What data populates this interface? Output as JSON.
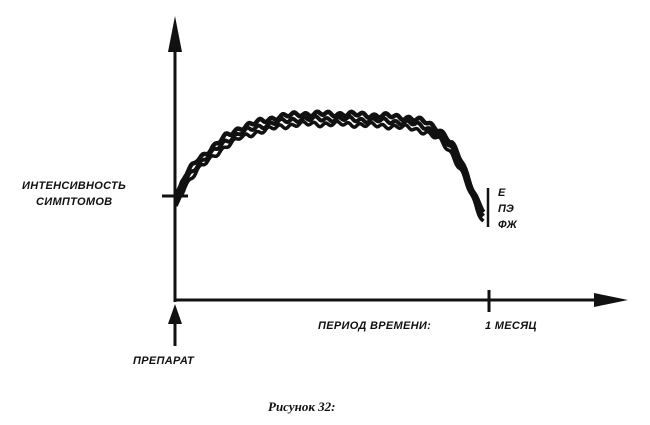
{
  "caption": "Рисунок 32:",
  "chart_data": {
    "type": "line",
    "ylabel_lines": [
      "ИНТЕНСИВНОСТЬ",
      "СИМПТОМОВ"
    ],
    "xlabel": "ПЕРИОД ВРЕМЕНИ:",
    "x_tick_label": "1 МЕСЯЦ",
    "start_label": "ПРЕПАРАТ",
    "series": [
      {
        "name": "Е"
      },
      {
        "name": "ПЭ"
      },
      {
        "name": "ФЖ"
      }
    ],
    "grid": false,
    "legend": "right end of curves"
  },
  "colors": {
    "ink": "#111111",
    "background": "#ffffff"
  }
}
